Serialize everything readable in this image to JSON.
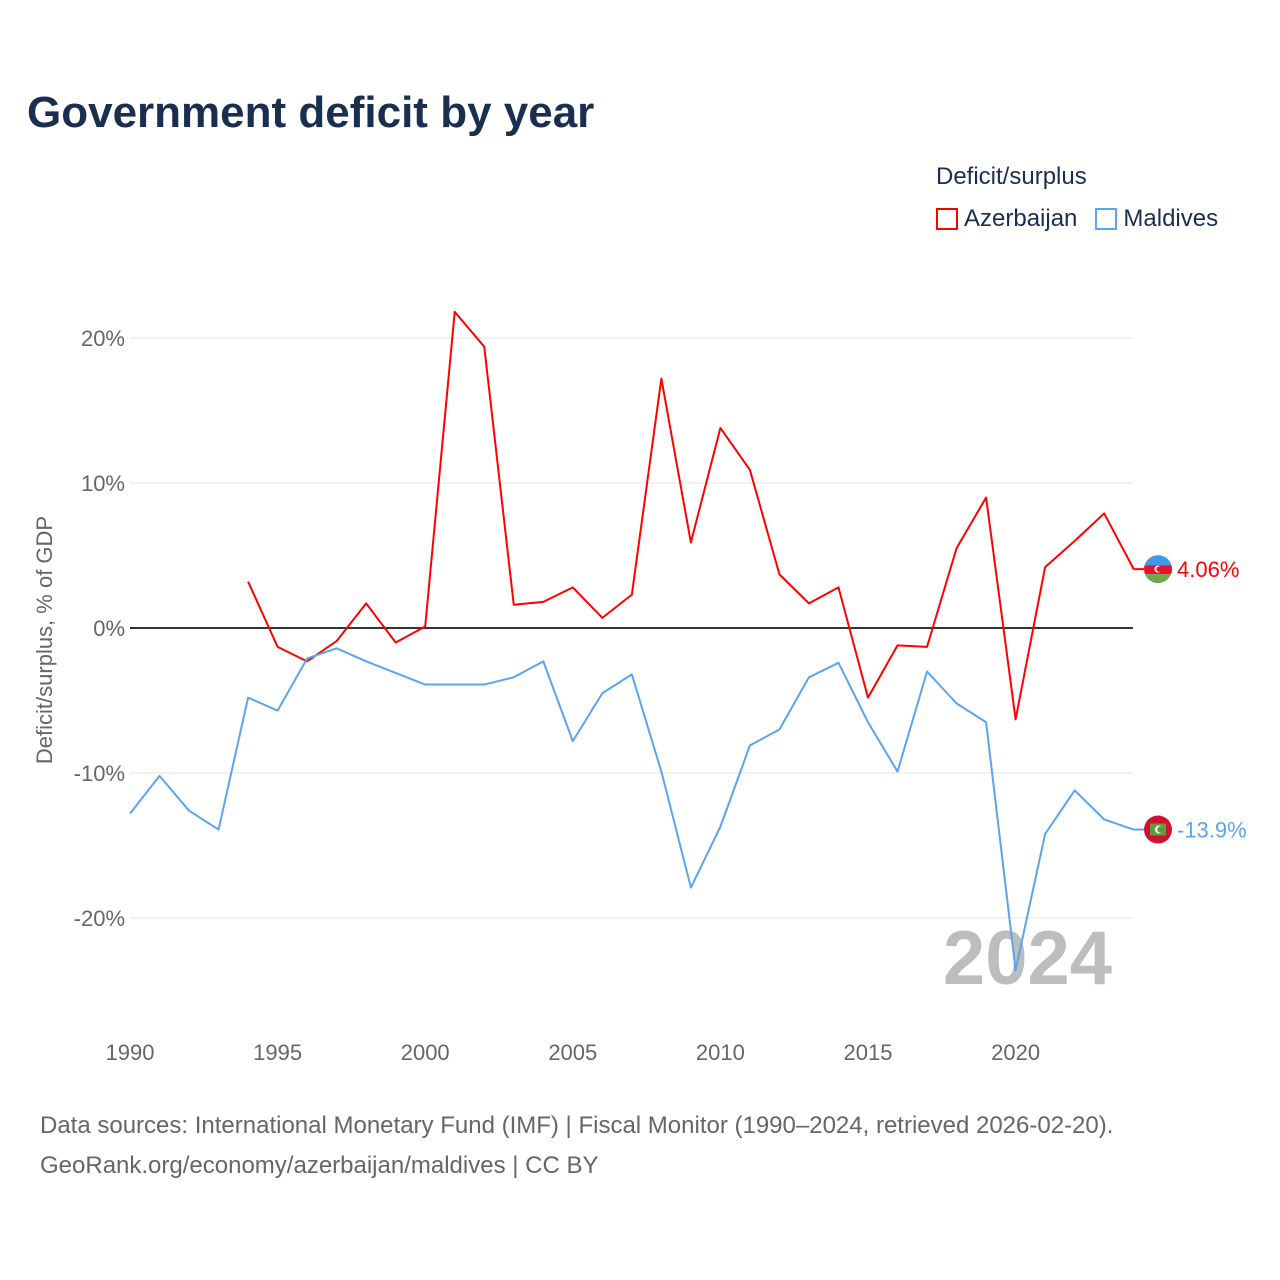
{
  "title": "Government deficit by year",
  "legend": {
    "title": "Deficit/surplus",
    "items": [
      {
        "label": "Azerbaijan",
        "color": "#ff0000"
      },
      {
        "label": "Maldives",
        "color": "#5aa5ee"
      }
    ]
  },
  "source": {
    "line1": "Data sources: International Monetary Fund (IMF) | Fiscal Monitor (1990–2024, retrieved 2026-02-20).",
    "line2": "GeoRank.org/economy/azerbaijan/maldives | CC BY"
  },
  "chart_data": {
    "type": "line",
    "title": "Government deficit by year",
    "xlabel": "",
    "ylabel": "Deficit/surplus, % of GDP",
    "xlim": [
      1990,
      2024
    ],
    "ylim": [
      -25,
      23
    ],
    "yticks": [
      20,
      10,
      0,
      -10,
      -20
    ],
    "ytick_labels": [
      "20%",
      "10%",
      "0%",
      "-10%",
      "-20%"
    ],
    "xticks": [
      1990,
      1995,
      2000,
      2005,
      2010,
      2015,
      2020
    ],
    "xtick_labels": [
      "1990",
      "1995",
      "2000",
      "2005",
      "2010",
      "2015",
      "2020"
    ],
    "year_watermark": "2024",
    "series": [
      {
        "name": "Azerbaijan",
        "color": "#ff0000",
        "end_label": "4.06%",
        "x": [
          1994,
          1995,
          1996,
          1997,
          1998,
          1999,
          2000,
          2001,
          2002,
          2003,
          2004,
          2005,
          2006,
          2007,
          2008,
          2009,
          2010,
          2011,
          2012,
          2013,
          2014,
          2015,
          2016,
          2017,
          2018,
          2019,
          2020,
          2021,
          2022,
          2023,
          2024
        ],
        "values": [
          3.2,
          -1.3,
          -2.3,
          -0.9,
          1.7,
          -1.0,
          0.1,
          21.8,
          19.4,
          1.6,
          1.8,
          2.8,
          0.7,
          2.3,
          17.2,
          5.9,
          13.8,
          10.9,
          3.7,
          1.7,
          2.8,
          -4.8,
          -1.2,
          -1.3,
          5.5,
          9.0,
          -6.3,
          4.2,
          6.0,
          7.9,
          4.06
        ]
      },
      {
        "name": "Maldives",
        "color": "#5aa5ee",
        "end_label": "-13.9%",
        "x": [
          1990,
          1991,
          1992,
          1993,
          1994,
          1995,
          1996,
          1997,
          1998,
          1999,
          2000,
          2001,
          2002,
          2003,
          2004,
          2005,
          2006,
          2007,
          2008,
          2009,
          2010,
          2011,
          2012,
          2013,
          2014,
          2015,
          2016,
          2017,
          2018,
          2019,
          2020,
          2021,
          2022,
          2023,
          2024
        ],
        "values": [
          -12.8,
          -10.2,
          -12.6,
          -13.9,
          -4.8,
          -5.7,
          -2.1,
          -1.4,
          -2.3,
          -3.1,
          -3.9,
          -3.9,
          -3.9,
          -3.4,
          -2.3,
          -7.8,
          -4.5,
          -3.2,
          -9.9,
          -17.9,
          -13.7,
          -8.1,
          -7.0,
          -3.4,
          -2.4,
          -6.5,
          -9.9,
          -3.0,
          -5.2,
          -6.5,
          -23.6,
          -14.2,
          -11.2,
          -13.2,
          -13.9
        ]
      }
    ]
  }
}
